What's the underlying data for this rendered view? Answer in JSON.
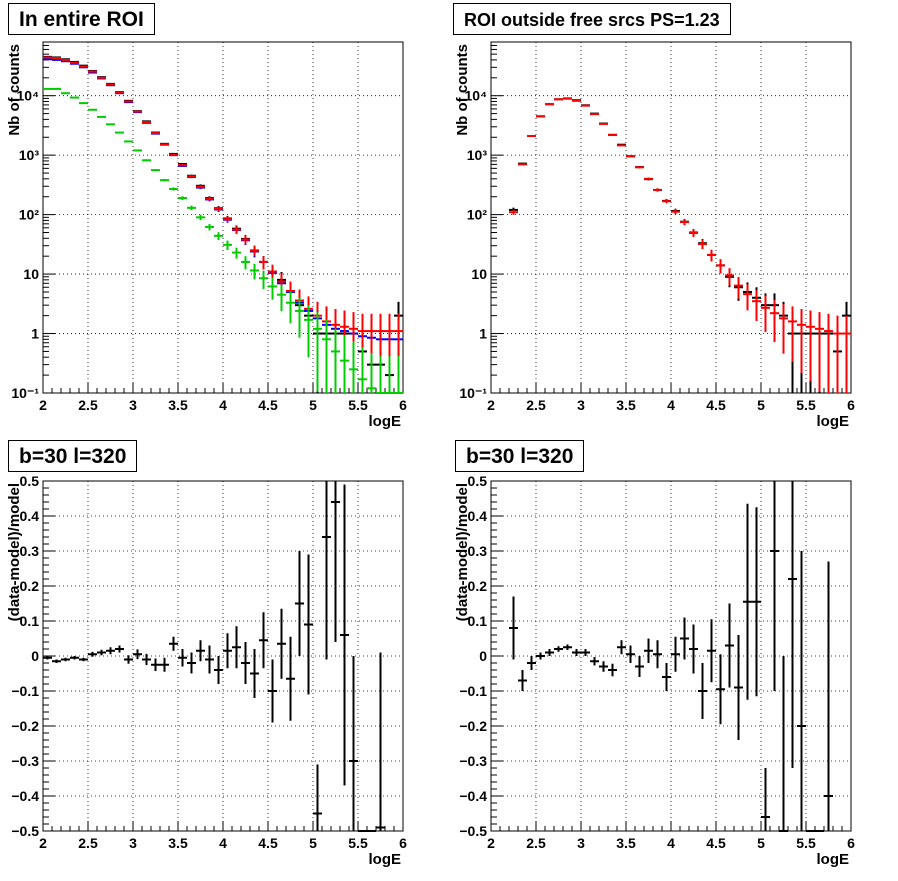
{
  "panels": [
    {
      "title": "In entire ROI",
      "xlabel": "logE",
      "ylabel": "Nb of counts"
    },
    {
      "title": "ROI outside free srcs PS=1.23",
      "xlabel": "logE",
      "ylabel": "Nb of counts"
    },
    {
      "title": "b=30 l=320",
      "xlabel": "logE",
      "ylabel": "(data-model)/model"
    },
    {
      "title": "b=30 l=320",
      "xlabel": "logE",
      "ylabel": "(data-model)/model"
    }
  ],
  "chart_data": [
    {
      "type": "scatter",
      "title": "In entire ROI",
      "xlabel": "logE",
      "ylabel": "Nb of counts",
      "xlim": [
        2,
        6
      ],
      "ylim": [
        0.1,
        80000
      ],
      "log_y": true,
      "grid": true,
      "bin_width": 0.1,
      "y_ticks": [
        0.1,
        1,
        10,
        100,
        1000,
        10000
      ],
      "y_tick_labels": [
        "10⁻¹",
        "1",
        "10",
        "10²",
        "10³",
        "10⁴"
      ],
      "x_ticks": [
        2,
        2.5,
        3,
        3.5,
        4,
        4.5,
        5,
        5.5,
        6
      ],
      "series": [
        {
          "color": "#000000",
          "x": [
            2.05,
            2.15,
            2.25,
            2.35,
            2.45,
            2.55,
            2.65,
            2.75,
            2.85,
            2.95,
            3.05,
            3.15,
            3.25,
            3.35,
            3.45,
            3.55,
            3.65,
            3.75,
            3.85,
            3.95,
            4.05,
            4.15,
            4.25,
            4.35,
            4.45,
            4.55,
            4.65,
            4.75,
            4.85,
            4.95,
            5.05,
            5.15,
            5.25,
            5.35,
            5.45,
            5.55,
            5.65,
            5.75,
            5.85,
            5.95
          ],
          "y": [
            45000,
            44000,
            41000,
            37000,
            32000,
            26000,
            20500,
            15800,
            11500,
            8200,
            5500,
            3700,
            2400,
            1550,
            1050,
            710,
            450,
            305,
            190,
            128,
            86,
            58,
            39,
            25,
            16,
            11,
            8,
            5,
            3,
            2,
            1,
            1,
            1,
            1,
            1,
            0.5,
            0.3,
            0.3,
            0.2,
            2
          ]
        },
        {
          "color": "#0000ff",
          "x": [
            2.05,
            2.15,
            2.25,
            2.35,
            2.45,
            2.55,
            2.65,
            2.75,
            2.85,
            2.95,
            3.05,
            3.15,
            3.25,
            3.35,
            3.45,
            3.55,
            3.65,
            3.75,
            3.85,
            3.95,
            4.05,
            4.15,
            4.25,
            4.35,
            4.45,
            4.55,
            4.65,
            4.75,
            4.85,
            4.95,
            5.05,
            5.15,
            5.25,
            5.35,
            5.45,
            5.55,
            5.65,
            5.75,
            5.85,
            5.95
          ],
          "y": [
            41000,
            40000,
            38000,
            34500,
            30000,
            24500,
            19500,
            15000,
            11000,
            7800,
            5300,
            3500,
            2300,
            1500,
            1000,
            660,
            430,
            285,
            180,
            122,
            82,
            55,
            37,
            24,
            16,
            10.5,
            7,
            5,
            3.3,
            2.4,
            1.8,
            1.4,
            1.2,
            1.1,
            1.0,
            0.9,
            0.85,
            0.8,
            0.8,
            0.8
          ]
        },
        {
          "color": "#ff0000",
          "x": [
            2.05,
            2.15,
            2.25,
            2.35,
            2.45,
            2.55,
            2.65,
            2.75,
            2.85,
            2.95,
            3.05,
            3.15,
            3.25,
            3.35,
            3.45,
            3.55,
            3.65,
            3.75,
            3.85,
            3.95,
            4.05,
            4.15,
            4.25,
            4.35,
            4.45,
            4.55,
            4.65,
            4.75,
            4.85,
            4.95,
            5.05,
            5.15,
            5.25,
            5.35,
            5.45,
            5.55,
            5.65,
            5.75,
            5.85,
            5.95
          ],
          "y": [
            44000,
            43000,
            40000,
            36000,
            31000,
            25500,
            20000,
            15500,
            11300,
            8000,
            5400,
            3600,
            2350,
            1520,
            1020,
            680,
            440,
            295,
            185,
            125,
            84,
            56,
            38,
            25,
            16,
            11,
            7.5,
            5.2,
            3.6,
            2.6,
            2,
            1.6,
            1.4,
            1.3,
            1.2,
            1.1,
            1.1,
            1.1,
            1.1,
            1.1
          ]
        },
        {
          "color": "#00cc00",
          "x": [
            2.05,
            2.15,
            2.25,
            2.35,
            2.45,
            2.55,
            2.65,
            2.75,
            2.85,
            2.95,
            3.05,
            3.15,
            3.25,
            3.35,
            3.45,
            3.55,
            3.65,
            3.75,
            3.85,
            3.95,
            4.05,
            4.15,
            4.25,
            4.35,
            4.45,
            4.55,
            4.65,
            4.75,
            4.85,
            4.95,
            5.05,
            5.15,
            5.25,
            5.35,
            5.45,
            5.55,
            5.65,
            5.75,
            5.85,
            5.95
          ],
          "y": [
            13000,
            13000,
            11000,
            9300,
            7500,
            5800,
            4400,
            3300,
            2400,
            1700,
            1200,
            820,
            560,
            380,
            270,
            190,
            130,
            90,
            62,
            44,
            31,
            23,
            16,
            11.5,
            8.5,
            6.2,
            4.5,
            3.3,
            2.4,
            1.7,
            1.2,
            0.8,
            0.5,
            0.35,
            0.25,
            0.17,
            0.12,
            0.1,
            0.1,
            0.1
          ]
        }
      ]
    },
    {
      "type": "scatter",
      "title": "ROI outside free srcs PS=1.23",
      "xlabel": "logE",
      "ylabel": "Nb of counts",
      "xlim": [
        2,
        6
      ],
      "ylim": [
        0.1,
        80000
      ],
      "log_y": true,
      "grid": true,
      "bin_width": 0.1,
      "y_ticks": [
        0.1,
        1,
        10,
        100,
        1000,
        10000
      ],
      "y_tick_labels": [
        "10⁻¹",
        "1",
        "10",
        "10²",
        "10³",
        "10⁴"
      ],
      "x_ticks": [
        2,
        2.5,
        3,
        3.5,
        4,
        4.5,
        5,
        5.5,
        6
      ],
      "series": [
        {
          "color": "#000000",
          "x": [
            2.25,
            2.35,
            2.45,
            2.55,
            2.65,
            2.75,
            2.85,
            2.95,
            3.05,
            3.15,
            3.25,
            3.35,
            3.45,
            3.55,
            3.65,
            3.75,
            3.85,
            3.95,
            4.05,
            4.15,
            4.25,
            4.35,
            4.45,
            4.55,
            4.65,
            4.75,
            4.85,
            4.95,
            5.05,
            5.15,
            5.25,
            5.35,
            5.45,
            5.55,
            5.65,
            5.75,
            5.85,
            5.95
          ],
          "y": [
            120,
            720,
            2100,
            4500,
            7200,
            8700,
            9000,
            8400,
            6900,
            5000,
            3400,
            2200,
            1500,
            960,
            630,
            395,
            260,
            170,
            115,
            76,
            50,
            33,
            21,
            14,
            9,
            6,
            5,
            4,
            3,
            3,
            2,
            1,
            1,
            1,
            1,
            1,
            0.5,
            2
          ]
        },
        {
          "color": "#ff0000",
          "x": [
            2.25,
            2.35,
            2.45,
            2.55,
            2.65,
            2.75,
            2.85,
            2.95,
            3.05,
            3.15,
            3.25,
            3.35,
            3.45,
            3.55,
            3.65,
            3.75,
            3.85,
            3.95,
            4.05,
            4.15,
            4.25,
            4.35,
            4.45,
            4.55,
            4.65,
            4.75,
            4.85,
            4.95,
            5.05,
            5.15,
            5.25,
            5.35,
            5.45,
            5.55,
            5.65,
            5.75,
            5.85,
            5.95
          ],
          "y": [
            110,
            700,
            2100,
            4500,
            7200,
            8700,
            8900,
            8200,
            6800,
            4900,
            3350,
            2180,
            1460,
            960,
            625,
            400,
            260,
            168,
            112,
            75,
            49,
            32,
            21,
            14,
            9.5,
            6.4,
            4.6,
            3.5,
            2.7,
            2.2,
            1.8,
            1.6,
            1.4,
            1.3,
            1.2,
            1.1,
            1.0,
            1.0
          ]
        }
      ]
    },
    {
      "type": "scatter",
      "title": "b=30 l=320",
      "xlabel": "logE",
      "ylabel": "(data-model)/model",
      "xlim": [
        2,
        6
      ],
      "ylim": [
        -0.5,
        0.5
      ],
      "grid": true,
      "bin_width": 0.1,
      "y_ticks": [
        -0.5,
        -0.4,
        -0.3,
        -0.2,
        -0.1,
        0,
        0.1,
        0.2,
        0.3,
        0.4,
        0.5
      ],
      "x_ticks": [
        2,
        2.5,
        3,
        3.5,
        4,
        4.5,
        5,
        5.5,
        6
      ],
      "series": [
        {
          "color": "#000000",
          "x": [
            2.05,
            2.15,
            2.25,
            2.35,
            2.45,
            2.55,
            2.65,
            2.75,
            2.85,
            2.95,
            3.05,
            3.15,
            3.25,
            3.35,
            3.45,
            3.55,
            3.65,
            3.75,
            3.85,
            3.95,
            4.05,
            4.15,
            4.25,
            4.35,
            4.45,
            4.55,
            4.65,
            4.75,
            4.85,
            4.95,
            5.05,
            5.15,
            5.25,
            5.35,
            5.45,
            5.55,
            5.65,
            5.75
          ],
          "y": [
            -0.005,
            -0.015,
            -0.01,
            -0.005,
            -0.01,
            0.005,
            0.01,
            0.015,
            0.02,
            -0.01,
            0.005,
            -0.01,
            -0.025,
            -0.025,
            0.035,
            -0.005,
            -0.02,
            0.015,
            -0.01,
            -0.04,
            0.015,
            0.025,
            -0.02,
            -0.05,
            0.045,
            -0.1,
            0.035,
            -0.065,
            0.15,
            0.09,
            -0.45,
            0.34,
            0.44,
            0.06,
            -0.3,
            -0.5,
            -0.5,
            -0.49
          ],
          "err": [
            0.005,
            0.005,
            0.005,
            0.005,
            0.005,
            0.007,
            0.008,
            0.01,
            0.01,
            0.012,
            0.014,
            0.016,
            0.018,
            0.02,
            0.02,
            0.025,
            0.03,
            0.03,
            0.04,
            0.04,
            0.05,
            0.06,
            0.06,
            0.07,
            0.08,
            0.09,
            0.1,
            0.12,
            0.15,
            0.2,
            0.14,
            0.35,
            0.4,
            0.43,
            0.3,
            0,
            0,
            0.5
          ]
        }
      ]
    },
    {
      "type": "scatter",
      "title": "b=30 l=320",
      "xlabel": "logE",
      "ylabel": "(data-model)/model",
      "xlim": [
        2,
        6
      ],
      "ylim": [
        -0.5,
        0.5
      ],
      "grid": true,
      "bin_width": 0.1,
      "y_ticks": [
        -0.5,
        -0.4,
        -0.3,
        -0.2,
        -0.1,
        0,
        0.1,
        0.2,
        0.3,
        0.4,
        0.5
      ],
      "x_ticks": [
        2,
        2.5,
        3,
        3.5,
        4,
        4.5,
        5,
        5.5,
        6
      ],
      "series": [
        {
          "color": "#000000",
          "x": [
            2.25,
            2.35,
            2.45,
            2.55,
            2.65,
            2.75,
            2.85,
            2.95,
            3.05,
            3.15,
            3.25,
            3.35,
            3.45,
            3.55,
            3.65,
            3.75,
            3.85,
            3.95,
            4.05,
            4.15,
            4.25,
            4.35,
            4.45,
            4.55,
            4.65,
            4.75,
            4.85,
            4.95,
            5.05,
            5.15,
            5.25,
            5.35,
            5.45,
            5.55,
            5.65,
            5.75
          ],
          "y": [
            0.08,
            -0.07,
            -0.02,
            0.0,
            0.01,
            0.02,
            0.025,
            0.01,
            0.01,
            -0.015,
            -0.03,
            -0.04,
            0.025,
            0.005,
            -0.03,
            0.015,
            0.005,
            -0.06,
            0.005,
            0.05,
            0.02,
            -0.1,
            0.015,
            -0.095,
            0.03,
            -0.09,
            0.155,
            0.155,
            -0.46,
            0.3,
            -0.5,
            0.22,
            -0.2,
            -0.5,
            -0.5,
            -0.4
          ],
          "err": [
            0.09,
            0.03,
            0.02,
            0.01,
            0.01,
            0.008,
            0.008,
            0.01,
            0.01,
            0.012,
            0.015,
            0.018,
            0.02,
            0.025,
            0.03,
            0.035,
            0.04,
            0.04,
            0.05,
            0.06,
            0.07,
            0.08,
            0.09,
            0.1,
            0.12,
            0.15,
            0.28,
            0.27,
            0.14,
            0.4,
            0.5,
            0.54,
            0.5,
            0,
            0,
            0.67
          ]
        }
      ]
    }
  ]
}
